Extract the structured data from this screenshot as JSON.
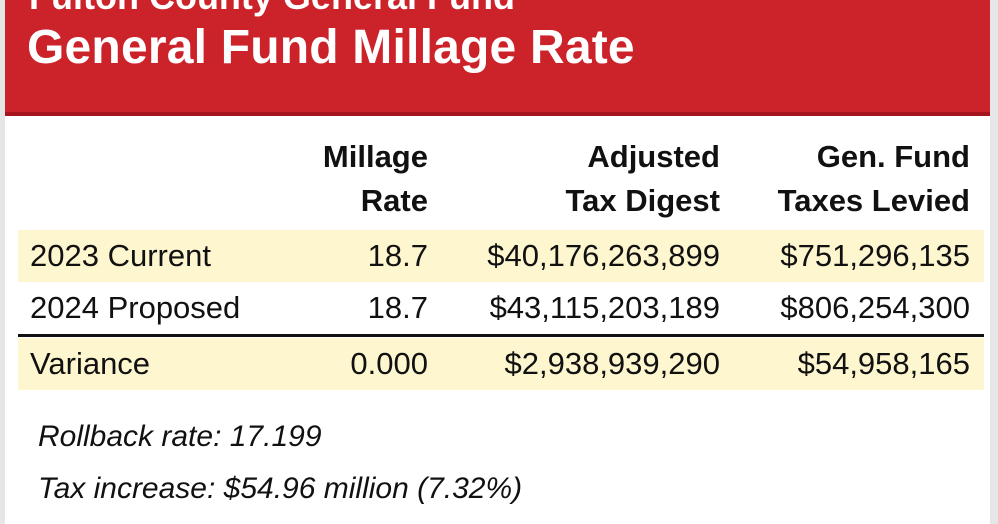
{
  "banner": {
    "kicker": "Fulton County General Fund",
    "title": "General Fund Millage Rate"
  },
  "table": {
    "columns": [
      {
        "line1": "Millage",
        "line2": "Rate"
      },
      {
        "line1": "Adjusted",
        "line2": "Tax Digest"
      },
      {
        "line1": "Gen. Fund",
        "line2": "Taxes Levied"
      }
    ],
    "rows": [
      {
        "label": "2023 Current",
        "millage": "18.7",
        "digest": "$40,176,263,899",
        "levied": "$751,296,135"
      },
      {
        "label": "2024 Proposed",
        "millage": "18.7",
        "digest": "$43,115,203,189",
        "levied": "$806,254,300"
      },
      {
        "label": "Variance",
        "millage": "0.000",
        "digest": "$2,938,939,290",
        "levied": "$54,958,165"
      }
    ]
  },
  "notes": {
    "rollback": "Rollback rate: 17.199",
    "increase": "Tax increase: $54.96 million (7.32%)"
  },
  "colors": {
    "banner": "#cc2229",
    "row_highlight": "#fdf6cf"
  }
}
